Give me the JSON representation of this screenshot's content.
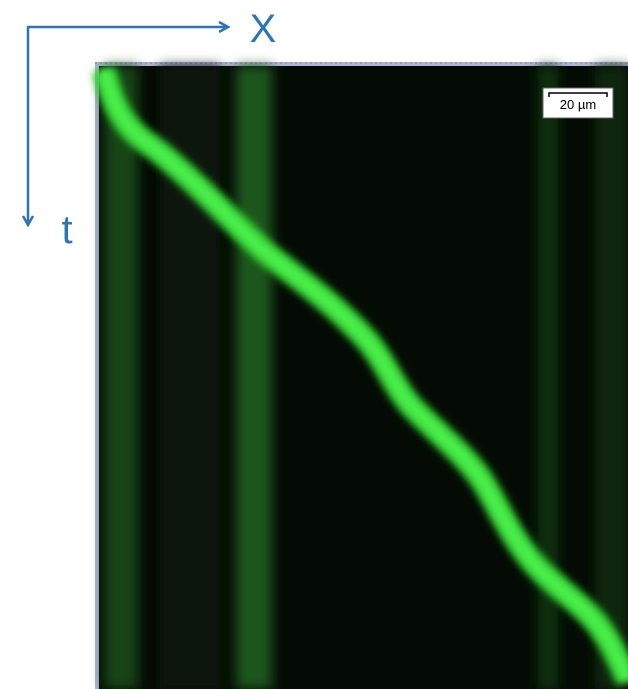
{
  "axes": {
    "x_label": "X",
    "t_label": "t"
  },
  "scale_bar": {
    "label": "20 µm"
  }
}
